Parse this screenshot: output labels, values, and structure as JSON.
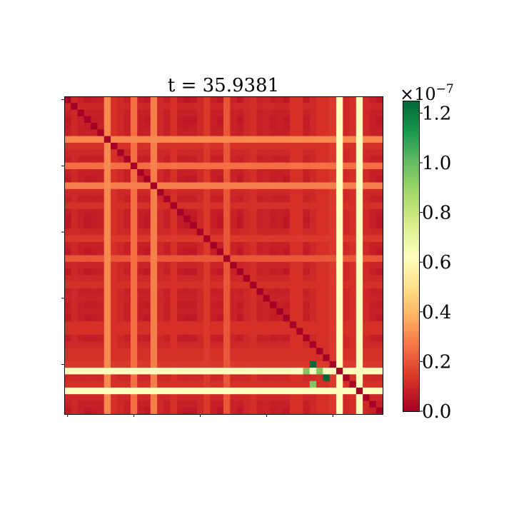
{
  "chart_data": {
    "type": "heatmap",
    "title": "t = 35.9381",
    "grid_size": 48,
    "vmin": 0.0,
    "vmax": 1.25,
    "colormap": "RdYlGn",
    "colorbar": {
      "exponent_label": "×10",
      "exponent_power": "−7",
      "ticks": [
        {
          "value": 0.0,
          "label": "0.0"
        },
        {
          "value": 0.2,
          "label": "0.2"
        },
        {
          "value": 0.4,
          "label": "0.4"
        },
        {
          "value": 0.6,
          "label": "0.6"
        },
        {
          "value": 0.8,
          "label": "0.8"
        },
        {
          "value": 1.0,
          "label": "1.0"
        },
        {
          "value": 1.2,
          "label": "1.2"
        }
      ]
    },
    "axis_ticks_unlabeled": [
      0,
      10,
      20,
      30,
      40
    ],
    "row_profile": [
      0.05,
      0.1,
      0.08,
      0.06,
      0.07,
      0.08,
      0.3,
      0.12,
      0.1,
      0.08,
      0.25,
      0.08,
      0.06,
      0.28,
      0.1,
      0.08,
      0.12,
      0.07,
      0.05,
      0.06,
      0.1,
      0.14,
      0.08,
      0.06,
      0.2,
      0.09,
      0.06,
      0.1,
      0.12,
      0.08,
      0.09,
      0.07,
      0.08,
      0.06,
      0.12,
      0.12,
      0.07,
      0.1,
      0.12,
      0.12,
      0.14,
      0.62,
      0.1,
      0.12,
      0.62,
      0.1,
      0.08,
      0.06
    ],
    "special_cells": [
      {
        "row": 40,
        "col": 37,
        "value": 1.25
      },
      {
        "row": 41,
        "col": 36,
        "value": 0.95
      },
      {
        "row": 41,
        "col": 38,
        "value": 0.95
      },
      {
        "row": 42,
        "col": 39,
        "value": 1.25
      },
      {
        "row": 43,
        "col": 37,
        "value": 0.95
      }
    ]
  }
}
